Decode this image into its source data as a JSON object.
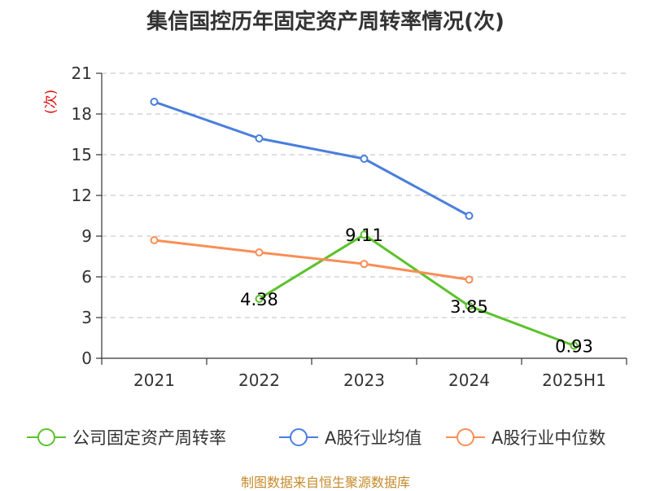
{
  "title": "集信国控历年固定资产周转率情况(次)",
  "source": "制图数据来自恒生聚源数据库",
  "chart_data": {
    "type": "line",
    "title": "集信国控历年固定资产周转率情况(次)",
    "ylabel": "(次)",
    "xlabel": "",
    "categories": [
      "2021",
      "2022",
      "2023",
      "2024",
      "2025H1"
    ],
    "ylim": [
      0,
      21
    ],
    "yticks": [
      0,
      3,
      6,
      9,
      12,
      15,
      18,
      21
    ],
    "grid": true,
    "legend_position": "bottom",
    "series": [
      {
        "name": "公司固定资产周转率",
        "color": "#5cc22b",
        "values": [
          null,
          4.38,
          9.11,
          3.85,
          0.93
        ],
        "labels": [
          null,
          "4.38",
          "9.11",
          "3.85",
          "0.93"
        ]
      },
      {
        "name": "A股行业均值",
        "color": "#4a7fdc",
        "values": [
          18.9,
          16.2,
          14.7,
          10.5,
          null
        ]
      },
      {
        "name": "A股行业中位数",
        "color": "#f98e55",
        "values": [
          8.7,
          7.8,
          6.95,
          5.8,
          null
        ]
      }
    ]
  }
}
